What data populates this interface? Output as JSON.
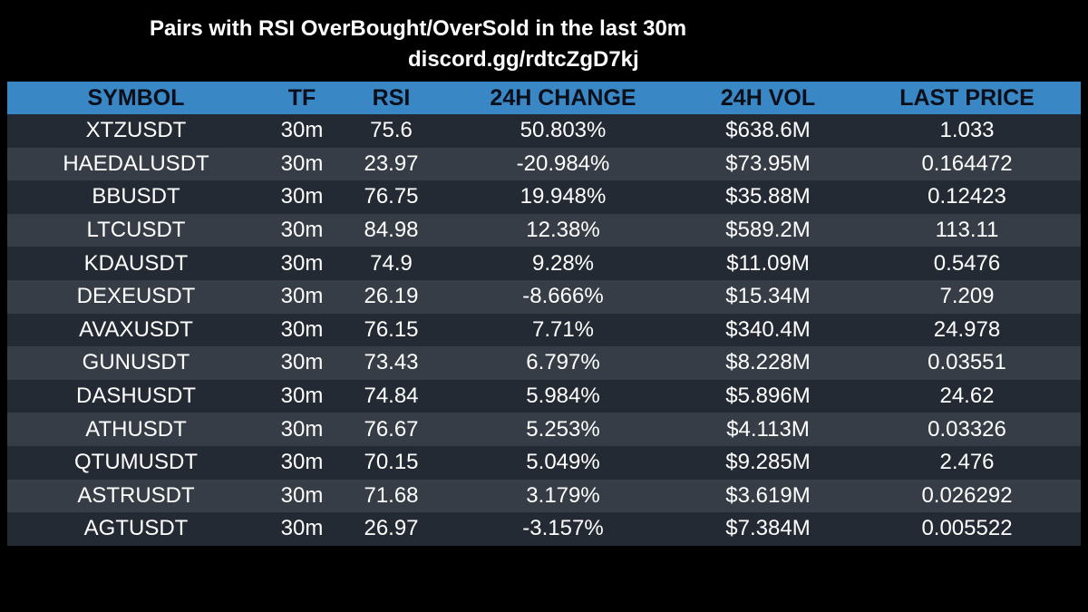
{
  "header": {
    "title": "Pairs with RSI OverBought/OverSold in the last 30m",
    "subtitle": "discord.gg/rdtcZgD7kj"
  },
  "table": {
    "columns": [
      "SYMBOL",
      "TF",
      "RSI",
      "24H CHANGE",
      "24H VOL",
      "LAST PRICE"
    ],
    "rows": [
      [
        "XTZUSDT",
        "30m",
        "75.6",
        "50.803%",
        "$638.6M",
        "1.033"
      ],
      [
        "HAEDALUSDT",
        "30m",
        "23.97",
        "-20.984%",
        "$73.95M",
        "0.164472"
      ],
      [
        "BBUSDT",
        "30m",
        "76.75",
        "19.948%",
        "$35.88M",
        "0.12423"
      ],
      [
        "LTCUSDT",
        "30m",
        "84.98",
        "12.38%",
        "$589.2M",
        "113.11"
      ],
      [
        "KDAUSDT",
        "30m",
        "74.9",
        "9.28%",
        "$11.09M",
        "0.5476"
      ],
      [
        "DEXEUSDT",
        "30m",
        "26.19",
        "-8.666%",
        "$15.34M",
        "7.209"
      ],
      [
        "AVAXUSDT",
        "30m",
        "76.15",
        "7.71%",
        "$340.4M",
        "24.978"
      ],
      [
        "GUNUSDT",
        "30m",
        "73.43",
        "6.797%",
        "$8.228M",
        "0.03551"
      ],
      [
        "DASHUSDT",
        "30m",
        "74.84",
        "5.984%",
        "$5.896M",
        "24.62"
      ],
      [
        "ATHUSDT",
        "30m",
        "76.67",
        "5.253%",
        "$4.113M",
        "0.03326"
      ],
      [
        "QTUMUSDT",
        "30m",
        "70.15",
        "5.049%",
        "$9.285M",
        "2.476"
      ],
      [
        "ASTRUSDT",
        "30m",
        "71.68",
        "3.179%",
        "$3.619M",
        "0.026292"
      ],
      [
        "AGTUSDT",
        "30m",
        "26.97",
        "-3.157%",
        "$7.384M",
        "0.005522"
      ]
    ]
  },
  "colors": {
    "background": "#000000",
    "header_bar": "#3a87c6",
    "row_dark": "#242a33",
    "row_light": "#363d46",
    "text": "#ffffff",
    "header_text": "#0a0f1a"
  }
}
